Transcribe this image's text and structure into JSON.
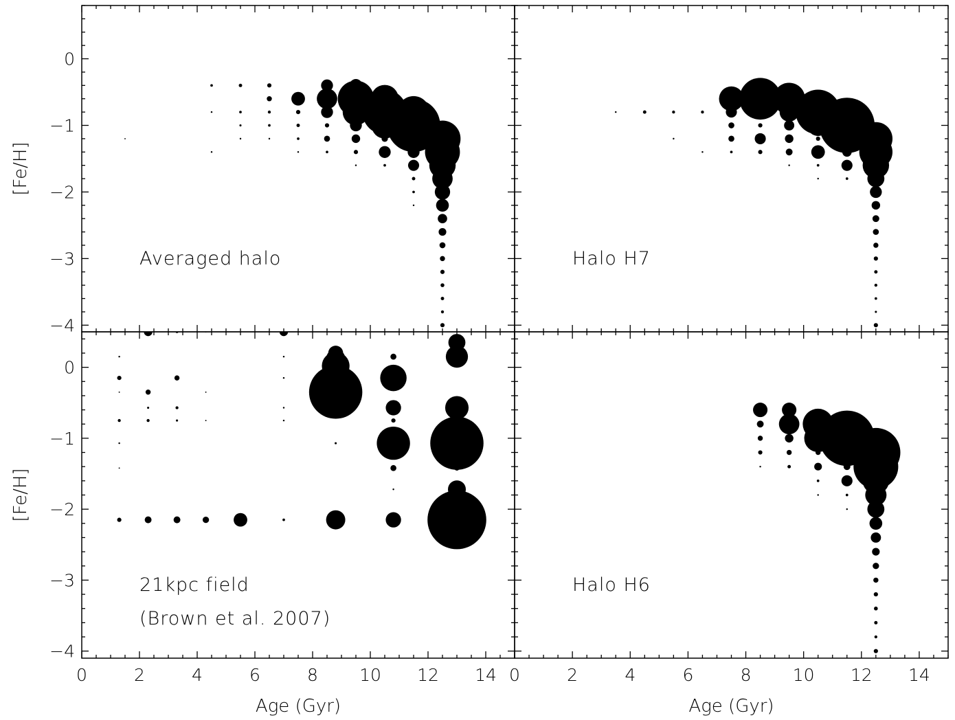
{
  "chart_data": [
    {
      "type": "scatter",
      "panel": "Averaged halo",
      "annotation": [
        "Averaged halo"
      ],
      "xlabel": "",
      "ylabel": "[Fe/H]",
      "xlim": [
        0,
        15
      ],
      "ylim": [
        -4.1,
        0.8
      ],
      "xticks": [],
      "yticks": [
        "0",
        "−1",
        "−2",
        "−3",
        "−4"
      ],
      "marker_size_unit": "relative weight",
      "points": [
        {
          "x": 1.5,
          "y": -1.2,
          "s": 0.03
        },
        {
          "x": 4.5,
          "y": -0.4,
          "s": 0.06
        },
        {
          "x": 4.5,
          "y": -0.8,
          "s": 0.04
        },
        {
          "x": 4.5,
          "y": -1.4,
          "s": 0.04
        },
        {
          "x": 5.5,
          "y": -0.4,
          "s": 0.08
        },
        {
          "x": 5.5,
          "y": -0.8,
          "s": 0.06
        },
        {
          "x": 5.5,
          "y": -1.0,
          "s": 0.05
        },
        {
          "x": 5.5,
          "y": -1.2,
          "s": 0.04
        },
        {
          "x": 6.5,
          "y": -0.4,
          "s": 0.1
        },
        {
          "x": 6.5,
          "y": -0.6,
          "s": 0.12
        },
        {
          "x": 6.5,
          "y": -0.8,
          "s": 0.07
        },
        {
          "x": 6.5,
          "y": -1.0,
          "s": 0.06
        },
        {
          "x": 6.5,
          "y": -1.2,
          "s": 0.04
        },
        {
          "x": 7.5,
          "y": -0.6,
          "s": 0.32
        },
        {
          "x": 7.5,
          "y": -0.8,
          "s": 0.1
        },
        {
          "x": 7.5,
          "y": -1.0,
          "s": 0.08
        },
        {
          "x": 7.5,
          "y": -1.2,
          "s": 0.06
        },
        {
          "x": 7.5,
          "y": -1.4,
          "s": 0.04
        },
        {
          "x": 8.5,
          "y": -0.4,
          "s": 0.28
        },
        {
          "x": 8.5,
          "y": -0.6,
          "s": 0.48
        },
        {
          "x": 8.5,
          "y": -0.8,
          "s": 0.28
        },
        {
          "x": 8.5,
          "y": -1.0,
          "s": 0.1
        },
        {
          "x": 8.5,
          "y": -1.2,
          "s": 0.14
        },
        {
          "x": 8.5,
          "y": -1.4,
          "s": 0.06
        },
        {
          "x": 9.5,
          "y": -0.4,
          "s": 0.3
        },
        {
          "x": 9.5,
          "y": -0.6,
          "s": 0.85
        },
        {
          "x": 9.5,
          "y": -0.8,
          "s": 0.62
        },
        {
          "x": 9.5,
          "y": -1.0,
          "s": 0.28
        },
        {
          "x": 9.5,
          "y": -1.2,
          "s": 0.2
        },
        {
          "x": 9.5,
          "y": -1.4,
          "s": 0.1
        },
        {
          "x": 9.5,
          "y": -1.6,
          "s": 0.04
        },
        {
          "x": 10.5,
          "y": -0.6,
          "s": 0.65
        },
        {
          "x": 10.5,
          "y": -0.8,
          "s": 1.05
        },
        {
          "x": 10.5,
          "y": -1.0,
          "s": 0.62
        },
        {
          "x": 10.5,
          "y": -1.2,
          "s": 0.15
        },
        {
          "x": 10.5,
          "y": -1.4,
          "s": 0.28
        },
        {
          "x": 10.5,
          "y": -1.6,
          "s": 0.06
        },
        {
          "x": 11.5,
          "y": -0.8,
          "s": 0.75
        },
        {
          "x": 11.5,
          "y": -1.0,
          "s": 1.25
        },
        {
          "x": 11.5,
          "y": -1.2,
          "s": 0.62
        },
        {
          "x": 11.5,
          "y": -1.4,
          "s": 0.28
        },
        {
          "x": 11.5,
          "y": -1.6,
          "s": 0.26
        },
        {
          "x": 11.5,
          "y": -1.8,
          "s": 0.08
        },
        {
          "x": 11.5,
          "y": -2.0,
          "s": 0.06
        },
        {
          "x": 11.5,
          "y": -2.2,
          "s": 0.04
        },
        {
          "x": 12.5,
          "y": -1.2,
          "s": 0.85
        },
        {
          "x": 12.5,
          "y": -1.4,
          "s": 0.82
        },
        {
          "x": 12.5,
          "y": -1.6,
          "s": 0.62
        },
        {
          "x": 12.5,
          "y": -1.8,
          "s": 0.48
        },
        {
          "x": 12.5,
          "y": -2.0,
          "s": 0.36
        },
        {
          "x": 12.5,
          "y": -2.2,
          "s": 0.3
        },
        {
          "x": 12.5,
          "y": -2.4,
          "s": 0.22
        },
        {
          "x": 12.5,
          "y": -2.6,
          "s": 0.18
        },
        {
          "x": 12.5,
          "y": -2.8,
          "s": 0.14
        },
        {
          "x": 12.5,
          "y": -3.0,
          "s": 0.12
        },
        {
          "x": 12.5,
          "y": -3.2,
          "s": 0.1
        },
        {
          "x": 12.5,
          "y": -3.4,
          "s": 0.09
        },
        {
          "x": 12.5,
          "y": -3.6,
          "s": 0.08
        },
        {
          "x": 12.5,
          "y": -3.8,
          "s": 0.07
        },
        {
          "x": 12.5,
          "y": -4.0,
          "s": 0.1
        }
      ]
    },
    {
      "type": "scatter",
      "panel": "Halo H7",
      "annotation": [
        "Halo H7"
      ],
      "xlabel": "",
      "ylabel": "",
      "xlim": [
        0,
        15
      ],
      "ylim": [
        -4.1,
        0.8
      ],
      "xticks": [],
      "yticks": [],
      "marker_size_unit": "relative weight",
      "points": [
        {
          "x": 3.5,
          "y": -0.8,
          "s": 0.04
        },
        {
          "x": 4.5,
          "y": -0.8,
          "s": 0.08
        },
        {
          "x": 5.5,
          "y": -0.8,
          "s": 0.07
        },
        {
          "x": 5.5,
          "y": -1.2,
          "s": 0.04
        },
        {
          "x": 6.5,
          "y": -0.8,
          "s": 0.07
        },
        {
          "x": 6.5,
          "y": -1.4,
          "s": 0.04
        },
        {
          "x": 7.5,
          "y": -0.6,
          "s": 0.58
        },
        {
          "x": 7.5,
          "y": -0.8,
          "s": 0.26
        },
        {
          "x": 7.5,
          "y": -1.0,
          "s": 0.14
        },
        {
          "x": 7.5,
          "y": -1.2,
          "s": 0.14
        },
        {
          "x": 7.5,
          "y": -1.4,
          "s": 0.06
        },
        {
          "x": 8.5,
          "y": -0.6,
          "s": 0.98
        },
        {
          "x": 8.5,
          "y": -0.8,
          "s": 0.26
        },
        {
          "x": 8.5,
          "y": -1.0,
          "s": 0.1
        },
        {
          "x": 8.5,
          "y": -1.2,
          "s": 0.26
        },
        {
          "x": 8.5,
          "y": -1.4,
          "s": 0.1
        },
        {
          "x": 9.5,
          "y": -0.6,
          "s": 0.75
        },
        {
          "x": 9.5,
          "y": -0.8,
          "s": 0.45
        },
        {
          "x": 9.5,
          "y": -1.0,
          "s": 0.24
        },
        {
          "x": 9.5,
          "y": -1.2,
          "s": 0.2
        },
        {
          "x": 9.5,
          "y": -1.4,
          "s": 0.16
        },
        {
          "x": 9.5,
          "y": -1.6,
          "s": 0.04
        },
        {
          "x": 10.5,
          "y": -0.8,
          "s": 1.05
        },
        {
          "x": 10.5,
          "y": -1.0,
          "s": 0.5
        },
        {
          "x": 10.5,
          "y": -1.2,
          "s": 0.1
        },
        {
          "x": 10.5,
          "y": -1.4,
          "s": 0.32
        },
        {
          "x": 10.5,
          "y": -1.6,
          "s": 0.06
        },
        {
          "x": 10.5,
          "y": -1.8,
          "s": 0.04
        },
        {
          "x": 11.5,
          "y": -0.8,
          "s": 0.62
        },
        {
          "x": 11.5,
          "y": -1.0,
          "s": 1.3
        },
        {
          "x": 11.5,
          "y": -1.2,
          "s": 0.62
        },
        {
          "x": 11.5,
          "y": -1.4,
          "s": 0.22
        },
        {
          "x": 11.5,
          "y": -1.6,
          "s": 0.26
        },
        {
          "x": 11.5,
          "y": -1.8,
          "s": 0.06
        },
        {
          "x": 12.5,
          "y": -1.2,
          "s": 0.78
        },
        {
          "x": 12.5,
          "y": -1.4,
          "s": 0.78
        },
        {
          "x": 12.5,
          "y": -1.6,
          "s": 0.62
        },
        {
          "x": 12.5,
          "y": -1.8,
          "s": 0.4
        },
        {
          "x": 12.5,
          "y": -2.0,
          "s": 0.28
        },
        {
          "x": 12.5,
          "y": -2.2,
          "s": 0.2
        },
        {
          "x": 12.5,
          "y": -2.4,
          "s": 0.16
        },
        {
          "x": 12.5,
          "y": -2.6,
          "s": 0.14
        },
        {
          "x": 12.5,
          "y": -2.8,
          "s": 0.12
        },
        {
          "x": 12.5,
          "y": -3.0,
          "s": 0.1
        },
        {
          "x": 12.5,
          "y": -3.2,
          "s": 0.08
        },
        {
          "x": 12.5,
          "y": -3.4,
          "s": 0.07
        },
        {
          "x": 12.5,
          "y": -3.6,
          "s": 0.06
        },
        {
          "x": 12.5,
          "y": -3.8,
          "s": 0.05
        },
        {
          "x": 12.5,
          "y": -4.0,
          "s": 0.1
        }
      ]
    },
    {
      "type": "scatter",
      "panel": "21kpc field",
      "annotation": [
        "21kpc field",
        "(Brown et al. 2007)"
      ],
      "xlabel": "Age (Gyr)",
      "ylabel": "[Fe/H]",
      "xlim": [
        0,
        15
      ],
      "ylim": [
        -4.1,
        0.5
      ],
      "xticks": [
        "0",
        "2",
        "4",
        "6",
        "8",
        "10",
        "12",
        "14"
      ],
      "yticks": [
        "0",
        "−1",
        "−2",
        "−3",
        "−4"
      ],
      "marker_size_unit": "relative weight",
      "points": [
        {
          "x": 1.3,
          "y": 0.15,
          "s": 0.04
        },
        {
          "x": 1.3,
          "y": -0.15,
          "s": 0.1
        },
        {
          "x": 1.3,
          "y": -0.35,
          "s": 0.03
        },
        {
          "x": 1.3,
          "y": -0.75,
          "s": 0.07
        },
        {
          "x": 1.3,
          "y": -1.07,
          "s": 0.04
        },
        {
          "x": 1.3,
          "y": -1.42,
          "s": 0.03
        },
        {
          "x": 1.3,
          "y": -2.15,
          "s": 0.1
        },
        {
          "x": 2.3,
          "y": 0.5,
          "s": 0.2
        },
        {
          "x": 2.3,
          "y": -0.35,
          "s": 0.12
        },
        {
          "x": 2.3,
          "y": -0.57,
          "s": 0.05
        },
        {
          "x": 2.3,
          "y": -0.75,
          "s": 0.07
        },
        {
          "x": 2.3,
          "y": -2.15,
          "s": 0.16
        },
        {
          "x": 3.3,
          "y": 0.5,
          "s": 0.06
        },
        {
          "x": 3.3,
          "y": -0.15,
          "s": 0.12
        },
        {
          "x": 3.3,
          "y": -0.57,
          "s": 0.07
        },
        {
          "x": 3.3,
          "y": -0.75,
          "s": 0.05
        },
        {
          "x": 3.3,
          "y": -2.15,
          "s": 0.16
        },
        {
          "x": 4.3,
          "y": 0.5,
          "s": 0.03
        },
        {
          "x": 4.3,
          "y": -0.35,
          "s": 0.03
        },
        {
          "x": 4.3,
          "y": -0.75,
          "s": 0.03
        },
        {
          "x": 4.3,
          "y": -2.15,
          "s": 0.15
        },
        {
          "x": 5.5,
          "y": -2.15,
          "s": 0.32
        },
        {
          "x": 7.0,
          "y": 0.5,
          "s": 0.2
        },
        {
          "x": 7.0,
          "y": 0.15,
          "s": 0.04
        },
        {
          "x": 7.0,
          "y": -0.15,
          "s": 0.04
        },
        {
          "x": 7.0,
          "y": -0.57,
          "s": 0.04
        },
        {
          "x": 7.0,
          "y": -0.75,
          "s": 0.04
        },
        {
          "x": 7.0,
          "y": -2.15,
          "s": 0.06
        },
        {
          "x": 8.8,
          "y": 0.2,
          "s": 0.35
        },
        {
          "x": 8.8,
          "y": 0.12,
          "s": 0.45
        },
        {
          "x": 8.8,
          "y": 0.02,
          "s": 0.65
        },
        {
          "x": 8.8,
          "y": -0.15,
          "s": 0.55
        },
        {
          "x": 8.8,
          "y": -0.35,
          "s": 1.25
        },
        {
          "x": 8.8,
          "y": -1.07,
          "s": 0.05
        },
        {
          "x": 8.8,
          "y": -2.15,
          "s": 0.45
        },
        {
          "x": 10.8,
          "y": 0.15,
          "s": 0.14
        },
        {
          "x": 10.8,
          "y": -0.15,
          "s": 0.62
        },
        {
          "x": 10.8,
          "y": -0.57,
          "s": 0.36
        },
        {
          "x": 10.8,
          "y": -0.75,
          "s": 0.1
        },
        {
          "x": 10.8,
          "y": -1.07,
          "s": 0.78
        },
        {
          "x": 10.8,
          "y": -1.42,
          "s": 0.14
        },
        {
          "x": 10.8,
          "y": -1.72,
          "s": 0.04
        },
        {
          "x": 10.8,
          "y": -2.15,
          "s": 0.36
        },
        {
          "x": 13.0,
          "y": 0.35,
          "s": 0.4
        },
        {
          "x": 13.0,
          "y": 0.15,
          "s": 0.52
        },
        {
          "x": 13.0,
          "y": -0.57,
          "s": 0.55
        },
        {
          "x": 13.0,
          "y": -0.75,
          "s": 0.2
        },
        {
          "x": 13.0,
          "y": -1.07,
          "s": 1.25
        },
        {
          "x": 13.0,
          "y": -1.42,
          "s": 0.12
        },
        {
          "x": 13.0,
          "y": -1.72,
          "s": 0.42
        },
        {
          "x": 13.0,
          "y": -2.15,
          "s": 1.38
        }
      ]
    },
    {
      "type": "scatter",
      "panel": "Halo H6",
      "annotation": [
        "Halo H6"
      ],
      "xlabel": "Age (Gyr)",
      "ylabel": "",
      "xlim": [
        0,
        15
      ],
      "ylim": [
        -4.1,
        0.5
      ],
      "xticks": [
        "0",
        "2",
        "4",
        "6",
        "8",
        "10",
        "12",
        "14"
      ],
      "yticks": [],
      "marker_size_unit": "relative weight",
      "points": [
        {
          "x": 8.5,
          "y": -0.6,
          "s": 0.34
        },
        {
          "x": 8.5,
          "y": -0.8,
          "s": 0.16
        },
        {
          "x": 8.5,
          "y": -1.0,
          "s": 0.12
        },
        {
          "x": 8.5,
          "y": -1.2,
          "s": 0.1
        },
        {
          "x": 8.5,
          "y": -1.4,
          "s": 0.04
        },
        {
          "x": 9.5,
          "y": -0.6,
          "s": 0.34
        },
        {
          "x": 9.5,
          "y": -0.8,
          "s": 0.48
        },
        {
          "x": 9.5,
          "y": -1.0,
          "s": 0.2
        },
        {
          "x": 9.5,
          "y": -1.2,
          "s": 0.12
        },
        {
          "x": 9.5,
          "y": -1.4,
          "s": 0.08
        },
        {
          "x": 10.5,
          "y": -0.8,
          "s": 0.72
        },
        {
          "x": 10.5,
          "y": -1.0,
          "s": 0.65
        },
        {
          "x": 10.5,
          "y": -1.2,
          "s": 0.12
        },
        {
          "x": 10.5,
          "y": -1.4,
          "s": 0.18
        },
        {
          "x": 10.5,
          "y": -1.6,
          "s": 0.06
        },
        {
          "x": 10.5,
          "y": -1.8,
          "s": 0.04
        },
        {
          "x": 11.5,
          "y": -0.8,
          "s": 0.62
        },
        {
          "x": 11.5,
          "y": -1.0,
          "s": 1.3
        },
        {
          "x": 11.5,
          "y": -1.2,
          "s": 0.65
        },
        {
          "x": 11.5,
          "y": -1.4,
          "s": 0.16
        },
        {
          "x": 11.5,
          "y": -1.6,
          "s": 0.26
        },
        {
          "x": 11.5,
          "y": -1.8,
          "s": 0.06
        },
        {
          "x": 11.5,
          "y": -2.0,
          "s": 0.04
        },
        {
          "x": 12.5,
          "y": -1.2,
          "s": 1.15
        },
        {
          "x": 12.5,
          "y": -1.4,
          "s": 1.05
        },
        {
          "x": 12.5,
          "y": -1.6,
          "s": 0.62
        },
        {
          "x": 12.5,
          "y": -1.8,
          "s": 0.5
        },
        {
          "x": 12.5,
          "y": -2.0,
          "s": 0.4
        },
        {
          "x": 12.5,
          "y": -2.2,
          "s": 0.3
        },
        {
          "x": 12.5,
          "y": -2.4,
          "s": 0.24
        },
        {
          "x": 12.5,
          "y": -2.6,
          "s": 0.18
        },
        {
          "x": 12.5,
          "y": -2.8,
          "s": 0.15
        },
        {
          "x": 12.5,
          "y": -3.0,
          "s": 0.12
        },
        {
          "x": 12.5,
          "y": -3.2,
          "s": 0.1
        },
        {
          "x": 12.5,
          "y": -3.4,
          "s": 0.09
        },
        {
          "x": 12.5,
          "y": -3.6,
          "s": 0.08
        },
        {
          "x": 12.5,
          "y": -3.8,
          "s": 0.07
        },
        {
          "x": 12.5,
          "y": -4.0,
          "s": 0.1
        }
      ]
    }
  ]
}
